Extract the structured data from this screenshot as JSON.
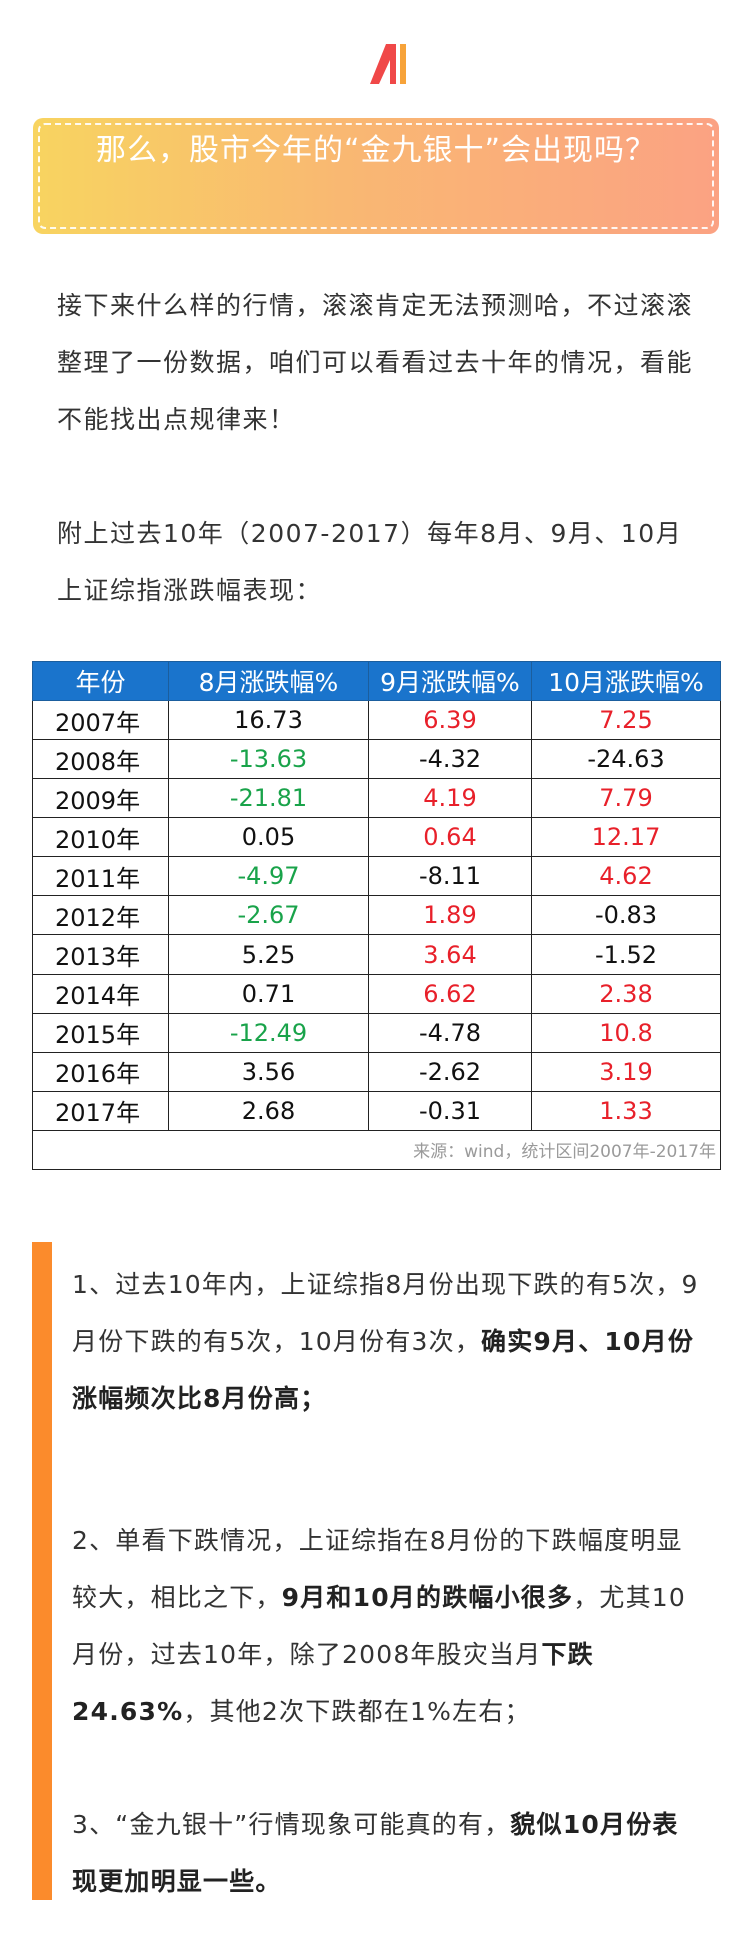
{
  "banner": {
    "title": "那么，股市今年的“金九银十”会出现吗？"
  },
  "intro": {
    "p1": "接下来什么样的行情，滚滚肯定无法预测哈，不过滚滚整理了一份数据，咱们可以看看过去十年的情况，看能不能找出点规律来！",
    "p2": "附上过去10年（2007-2017）每年8月、9月、10月上证综指涨跌幅表现："
  },
  "table": {
    "headers": [
      "年份",
      "8月涨跌幅%",
      "9月涨跌幅%",
      "10月涨跌幅%"
    ],
    "rows": [
      [
        "2007年",
        "16.73",
        "6.39",
        "7.25"
      ],
      [
        "2008年",
        "-13.63",
        "-4.32",
        "-24.63"
      ],
      [
        "2009年",
        "-21.81",
        "4.19",
        "7.79"
      ],
      [
        "2010年",
        "0.05",
        "0.64",
        "12.17"
      ],
      [
        "2011年",
        "-4.97",
        "-8.11",
        "4.62"
      ],
      [
        "2012年",
        "-2.67",
        "1.89",
        "-0.83"
      ],
      [
        "2013年",
        "5.25",
        "3.64",
        "-1.52"
      ],
      [
        "2014年",
        "0.71",
        "6.62",
        "2.38"
      ],
      [
        "2015年",
        "-12.49",
        "-4.78",
        "10.8"
      ],
      [
        "2016年",
        "3.56",
        "-2.62",
        "3.19"
      ],
      [
        "2017年",
        "2.68",
        "-0.31",
        "1.33"
      ]
    ],
    "note": "来源：wind，统计区间2007年-2017年"
  },
  "colors": {
    "up": "#e8202a",
    "down": "#19a34a",
    "header_bg": "#1a74cc",
    "accent_bar": "#fb8b2c"
  },
  "points": [
    {
      "segments": [
        {
          "text": "1、过去10年内，上证综指8月份出现下跌的有5次，9月份下跌的有5次，10月份有3次，",
          "bold": false
        },
        {
          "text": "确实9月、10月份涨幅频次比8月份高；",
          "bold": true
        }
      ]
    },
    {
      "segments": [
        {
          "text": "2、单看下跌情况，上证综指在8月份的下跌幅度明显较大，相比之下，",
          "bold": false
        },
        {
          "text": "9月和10月的跌幅小很多",
          "bold": true
        },
        {
          "text": "，尤其10月份，过去10年，除了2008年股灾当月",
          "bold": false
        },
        {
          "text": "下跌24.63%",
          "bold": true
        },
        {
          "text": "，其他2次下跌都在1%左右；",
          "bold": false
        }
      ]
    },
    {
      "segments": [
        {
          "text": "3、“金九银十”行情现象可能真的有，",
          "bold": false
        },
        {
          "text": "貌似10月份表现更加明显一些。",
          "bold": true
        }
      ]
    }
  ]
}
